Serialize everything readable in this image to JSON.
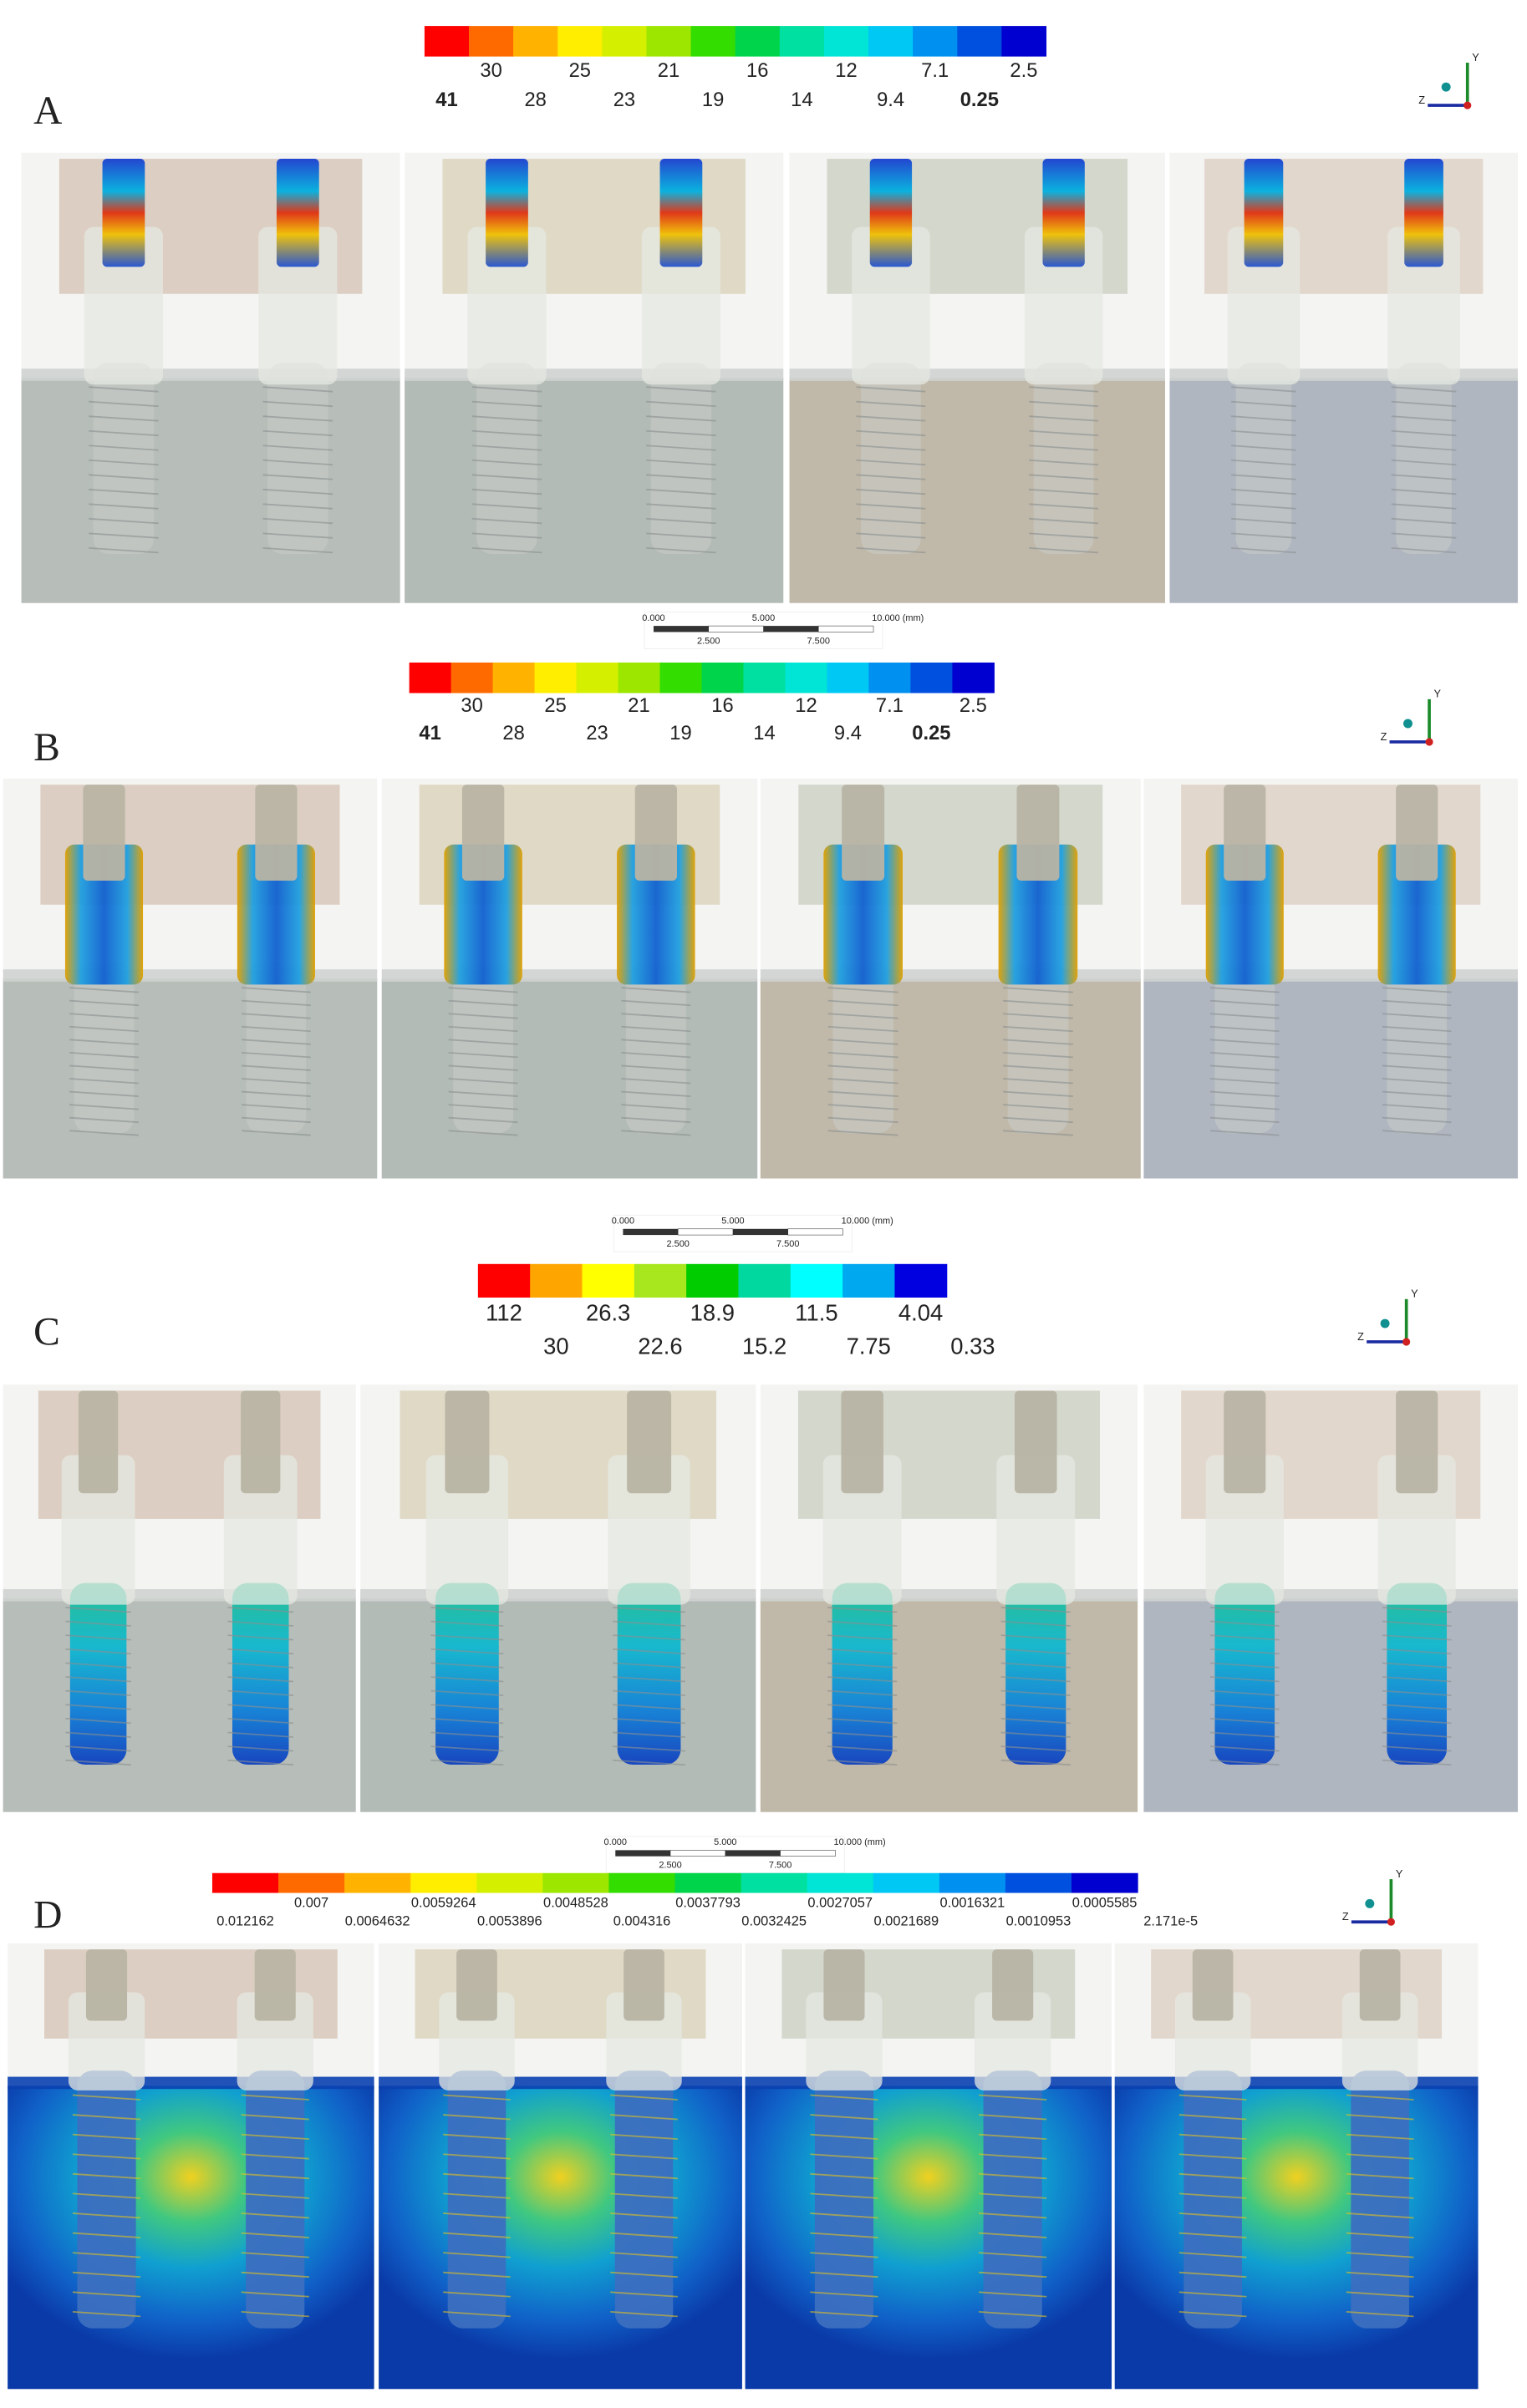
{
  "panels": [
    {
      "label": "A",
      "legend": {
        "colors": [
          "#ff0000",
          "#ff6a00",
          "#ffb300",
          "#ffee00",
          "#d4f000",
          "#9ce600",
          "#33dd00",
          "#00d44a",
          "#00e0a0",
          "#00e5d5",
          "#00c8f5",
          "#0090f0",
          "#0050e0",
          "#0000d0"
        ],
        "top_labels": [
          "30",
          "25",
          "21",
          "16",
          "12",
          "7.1",
          "2.5"
        ],
        "bottom_labels": [
          "41",
          "28",
          "23",
          "19",
          "14",
          "9.4",
          "0.25"
        ]
      }
    },
    {
      "label": "B",
      "legend": {
        "colors": [
          "#ff0000",
          "#ff6a00",
          "#ffb300",
          "#ffee00",
          "#d4f000",
          "#9ce600",
          "#33dd00",
          "#00d44a",
          "#00e0a0",
          "#00e5d5",
          "#00c8f5",
          "#0090f0",
          "#0050e0",
          "#0000d0"
        ],
        "top_labels": [
          "30",
          "25",
          "21",
          "16",
          "12",
          "7.1",
          "2.5"
        ],
        "bottom_labels": [
          "41",
          "28",
          "23",
          "19",
          "14",
          "9.4",
          "0.25"
        ]
      }
    },
    {
      "label": "C",
      "legend": {
        "colors": [
          "#ff0000",
          "#ffa500",
          "#ffff00",
          "#a8e61d",
          "#00cc00",
          "#00d8a0",
          "#00ffff",
          "#00a8f0",
          "#0000e0"
        ],
        "top_labels": [
          "112",
          "26.3",
          "18.9",
          "11.5",
          "4.04"
        ],
        "bottom_labels": [
          "30",
          "22.6",
          "15.2",
          "7.75",
          "0.33"
        ]
      }
    },
    {
      "label": "D",
      "legend": {
        "colors": [
          "#ff0000",
          "#ff6a00",
          "#ffb300",
          "#ffee00",
          "#d4f000",
          "#9ce600",
          "#33dd00",
          "#00d44a",
          "#00e0a0",
          "#00e5d5",
          "#00c8f5",
          "#0090f0",
          "#0050e0",
          "#0000d0"
        ],
        "top_labels": [
          "0.007",
          "0.0059264",
          "0.0048528",
          "0.0037793",
          "0.0027057",
          "0.0016321",
          "0.0005585"
        ],
        "bottom_labels": [
          "0.012162",
          "0.0064632",
          "0.0053896",
          "0.004316",
          "0.0032425",
          "0.0021689",
          "0.0010953",
          "2.171e-5"
        ]
      }
    }
  ],
  "scale_bars": [
    {
      "ticks": [
        "0.000",
        "5.000",
        "10.000 (mm)"
      ],
      "sub_ticks": [
        "2.500",
        "7.500"
      ]
    },
    {
      "ticks": [
        "0.000",
        "5.000",
        "10.000 (mm)"
      ],
      "sub_ticks": [
        "2.500",
        "7.500"
      ]
    },
    {
      "ticks": [
        "0.000",
        "5.000",
        "10.000 (mm)"
      ],
      "sub_ticks": [
        "2.500",
        "7.500"
      ]
    }
  ],
  "triad": {
    "y": "Y",
    "z": "Z"
  }
}
